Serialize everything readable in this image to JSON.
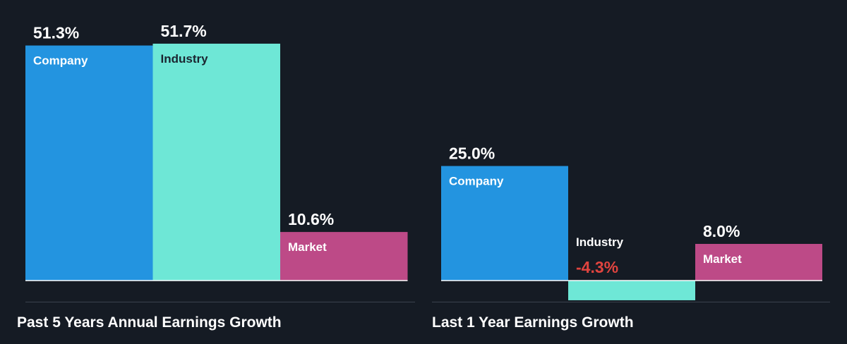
{
  "colors": {
    "background": "#151b24",
    "company": "#2394e0",
    "industry": "#6ee7d6",
    "market": "#bd4a87",
    "positive_text": "#ffffff",
    "negative_text": "#e0443f",
    "dark_label": "#1b2530",
    "axis": "#ffffff",
    "divider": "#3b424d"
  },
  "chart_data": [
    {
      "type": "bar",
      "title": "Past 5 Years Annual Earnings Growth",
      "categories": [
        "Company",
        "Industry",
        "Market"
      ],
      "values": [
        51.3,
        51.7,
        10.6
      ],
      "value_labels": [
        "51.3%",
        "51.7%",
        "10.6%"
      ],
      "unit": "%"
    },
    {
      "type": "bar",
      "title": "Last 1 Year Earnings Growth",
      "categories": [
        "Company",
        "Industry",
        "Market"
      ],
      "values": [
        25.0,
        -4.3,
        8.0
      ],
      "value_labels": [
        "25.0%",
        "-4.3%",
        "8.0%"
      ],
      "unit": "%"
    }
  ]
}
